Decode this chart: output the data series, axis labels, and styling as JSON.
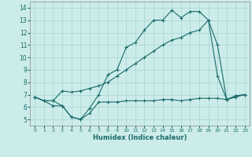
{
  "xlabel": "Humidex (Indice chaleur)",
  "bg_color": "#ccecea",
  "grid_color": "#aad8d6",
  "line_color": "#1a6b6b",
  "xlim": [
    -0.5,
    23.5
  ],
  "ylim": [
    4.5,
    14.5
  ],
  "xticks": [
    0,
    1,
    2,
    3,
    4,
    5,
    6,
    7,
    8,
    9,
    10,
    11,
    12,
    13,
    14,
    15,
    16,
    17,
    18,
    19,
    20,
    21,
    22,
    23
  ],
  "yticks": [
    5,
    6,
    7,
    8,
    9,
    10,
    11,
    12,
    13,
    14
  ],
  "series1_x": [
    0,
    1,
    2,
    3,
    4,
    5,
    6,
    7,
    8,
    9,
    10,
    11,
    12,
    13,
    14,
    15,
    16,
    17,
    18,
    19,
    20,
    21,
    22,
    23
  ],
  "series1_y": [
    6.8,
    6.5,
    6.1,
    6.1,
    5.2,
    5.0,
    5.5,
    6.4,
    6.4,
    6.4,
    6.5,
    6.5,
    6.5,
    6.5,
    6.6,
    6.6,
    6.5,
    6.6,
    6.7,
    6.7,
    6.7,
    6.6,
    6.8,
    7.0
  ],
  "series2_x": [
    0,
    1,
    2,
    3,
    4,
    5,
    6,
    7,
    8,
    9,
    10,
    11,
    12,
    13,
    14,
    15,
    16,
    17,
    18,
    19,
    20,
    21,
    22,
    23
  ],
  "series2_y": [
    6.8,
    6.5,
    6.5,
    7.3,
    7.2,
    7.3,
    7.5,
    7.7,
    8.0,
    8.5,
    9.0,
    9.5,
    10.0,
    10.5,
    11.0,
    11.4,
    11.6,
    12.0,
    12.2,
    13.0,
    11.0,
    6.6,
    6.9,
    7.0
  ],
  "series3_x": [
    0,
    1,
    2,
    3,
    4,
    5,
    6,
    7,
    8,
    9,
    10,
    11,
    12,
    13,
    14,
    15,
    16,
    17,
    18,
    19,
    20,
    21,
    22,
    23
  ],
  "series3_y": [
    6.8,
    6.5,
    6.5,
    6.1,
    5.2,
    5.0,
    5.9,
    7.0,
    8.6,
    9.0,
    10.8,
    11.2,
    12.2,
    13.0,
    13.0,
    13.8,
    13.2,
    13.7,
    13.7,
    13.0,
    8.5,
    6.6,
    6.9,
    7.0
  ]
}
